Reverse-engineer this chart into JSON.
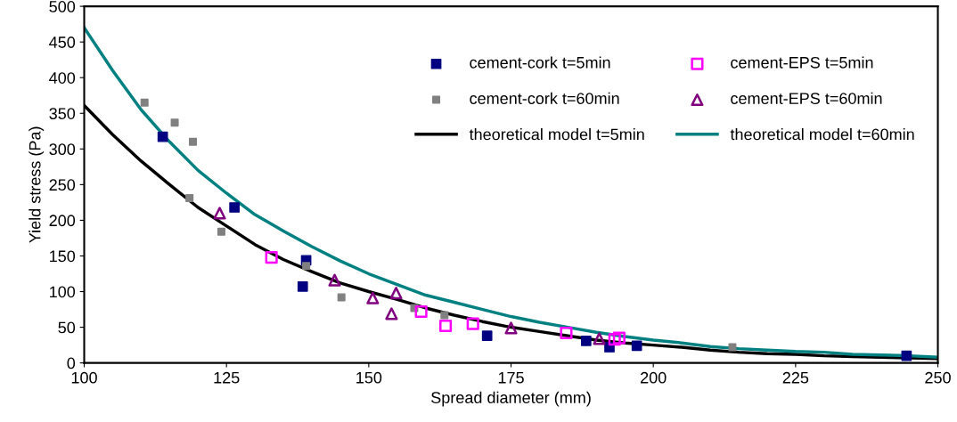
{
  "chart_data": {
    "type": "scatter",
    "xlabel": "Spread diameter (mm)",
    "ylabel": "Yield stress (Pa)",
    "xlim": [
      100,
      250
    ],
    "xticks": [
      100,
      125,
      150,
      175,
      200,
      225,
      250
    ],
    "ylim": [
      0,
      500
    ],
    "yticks": [
      0,
      50,
      100,
      150,
      200,
      250,
      300,
      350,
      400,
      450,
      500
    ],
    "grid": false,
    "legend": "top right",
    "series": [
      {
        "name": "cement-cork t=5min",
        "color": "#000080",
        "marker": "square",
        "x": [
          113.8,
          126.4,
          138.4,
          139.0,
          170.8,
          188.2,
          192.3,
          197.1,
          244.5
        ],
        "values": [
          317,
          218,
          107,
          144,
          38,
          31,
          22,
          24,
          10
        ]
      },
      {
        "name": "cement-EPS t=5min",
        "color": "#ff00ff",
        "marker": "square",
        "x": [
          132.9,
          159.2,
          163.5,
          168.3,
          184.7,
          193.2,
          194.0
        ],
        "values": [
          148,
          72,
          52,
          55,
          42,
          33,
          35
        ]
      },
      {
        "name": "cement-cork t=60min",
        "color": "#808080",
        "marker": "square",
        "x": [
          110.6,
          115.9,
          119.1,
          118.5,
          124.1,
          139.0,
          145.2,
          158.0,
          163.3,
          213.9
        ],
        "values": [
          365,
          337,
          310,
          231,
          184,
          136,
          92,
          77,
          67,
          22
        ]
      },
      {
        "name": "cement-EPS t=60min",
        "color": "#800080",
        "marker": "triangle",
        "x": [
          123.8,
          144.0,
          150.7,
          154.0,
          154.8,
          175.0,
          190.5
        ],
        "values": [
          210,
          116,
          91,
          69,
          98,
          49,
          34
        ]
      },
      {
        "name": "theoretical model t=5min",
        "color": "#000000",
        "type": "line",
        "marker": "none",
        "line_style": "solid",
        "x": [
          100,
          105,
          110,
          115,
          120,
          125,
          130,
          135,
          140,
          145,
          150,
          155,
          160,
          165,
          170,
          175,
          180,
          185,
          190,
          195,
          200,
          205,
          210,
          215,
          220,
          225,
          230,
          235,
          240,
          245,
          250
        ],
        "values": [
          361,
          320,
          283,
          250,
          218,
          192,
          166,
          145,
          128,
          112,
          100,
          89,
          77,
          67,
          58,
          50,
          44,
          38,
          32,
          28,
          25,
          22,
          18,
          15,
          13,
          12,
          10,
          9,
          8,
          7,
          6
        ]
      },
      {
        "name": "theoretical model t=60min",
        "color": "#008080",
        "type": "line",
        "marker": "none",
        "line_style": "solid",
        "x": [
          100,
          105,
          110,
          115,
          120,
          125,
          130,
          135,
          140,
          145,
          150,
          155,
          160,
          165,
          170,
          175,
          180,
          185,
          190,
          195,
          200,
          205,
          210,
          215,
          220,
          225,
          230,
          235,
          240,
          245,
          250
        ],
        "values": [
          470,
          410,
          355,
          310,
          270,
          238,
          208,
          185,
          163,
          143,
          125,
          110,
          95,
          85,
          75,
          65,
          57,
          50,
          43,
          37,
          32,
          28,
          23,
          20,
          18,
          16,
          15,
          12,
          11,
          10,
          8
        ]
      }
    ]
  }
}
